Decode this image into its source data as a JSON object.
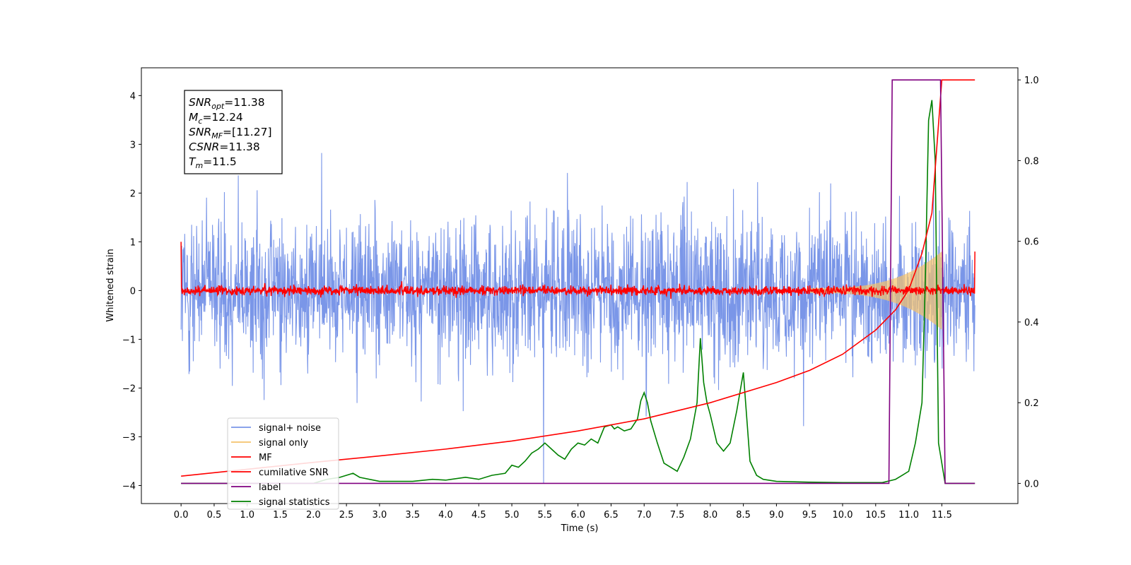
{
  "chart_data": {
    "type": "line",
    "xlabel": "Time (s)",
    "ylabel": "Whitened strain",
    "xlim": [
      -0.6,
      12.65
    ],
    "ylim": [
      -4.37,
      4.57
    ],
    "y2lim": [
      -0.05,
      1.03
    ],
    "grid": false,
    "legend_position": "lower-left",
    "x_ticks": [
      "0.0",
      "0.5",
      "1.0",
      "1.5",
      "2.0",
      "2.5",
      "3.0",
      "3.5",
      "4.0",
      "4.5",
      "5.0",
      "5.5",
      "6.0",
      "6.5",
      "7.0",
      "7.5",
      "8.0",
      "8.5",
      "9.0",
      "9.5",
      "10.0",
      "10.5",
      "11.0",
      "11.5"
    ],
    "y_ticks_left": [
      "−4",
      "−3",
      "−2",
      "−1",
      "0",
      "1",
      "2",
      "3",
      "4"
    ],
    "y_ticks_right": [
      "0.0",
      "0.2",
      "0.4",
      "0.6",
      "0.8",
      "1.0"
    ],
    "annotation": [
      {
        "base": "SNR",
        "sub": "opt",
        "value": "=11.38"
      },
      {
        "base": "M",
        "sub": "c",
        "value": "=12.24"
      },
      {
        "base": "SNR",
        "sub": "MF",
        "value": "=[11.27]"
      },
      {
        "base": "CSNR",
        "sub": "",
        "value": "=11.38"
      },
      {
        "base": "T",
        "sub": "m",
        "value": "=11.5"
      }
    ],
    "series": [
      {
        "name": "signal+ noise",
        "color": "#7a96e8",
        "axis": "left",
        "envelope": "dense noise, amplitude ~±2.5, peaks to ±4"
      },
      {
        "name": "signal only",
        "color": "#f5c26b",
        "axis": "left",
        "t_start": 9.5,
        "t_end": 11.5,
        "peak_amplitude": 0.75
      },
      {
        "name": "MF",
        "color": "#ff0000",
        "axis": "left",
        "baseline": 0.0,
        "noise_amplitude": 0.12,
        "end_points": [
          [
            0.0,
            1.0
          ],
          [
            12.0,
            0.8
          ]
        ]
      },
      {
        "name": "cumilative SNR",
        "color": "#ff0000",
        "axis": "right",
        "x": [
          0.0,
          1.0,
          2.0,
          3.0,
          4.0,
          5.0,
          6.0,
          7.0,
          8.0,
          9.0,
          9.5,
          10.0,
          10.5,
          10.8,
          11.0,
          11.2,
          11.35,
          11.5,
          12.0
        ],
        "y": [
          0.018,
          0.035,
          0.052,
          0.068,
          0.085,
          0.105,
          0.13,
          0.16,
          0.2,
          0.25,
          0.28,
          0.32,
          0.38,
          0.43,
          0.48,
          0.57,
          0.67,
          1.0,
          1.0
        ]
      },
      {
        "name": "label",
        "color": "#800080",
        "axis": "right",
        "x": [
          0.0,
          10.7,
          10.75,
          11.48,
          11.55,
          11.6,
          12.0
        ],
        "y": [
          0.0,
          0.0,
          1.0,
          1.0,
          0.0,
          0.0,
          0.0
        ]
      },
      {
        "name": "signal statistics",
        "color": "#008000",
        "axis": "right",
        "x": [
          0.0,
          0.5,
          1.0,
          1.5,
          2.0,
          2.2,
          2.4,
          2.5,
          2.6,
          2.7,
          3.0,
          3.5,
          3.8,
          4.0,
          4.3,
          4.5,
          4.7,
          4.9,
          5.0,
          5.1,
          5.2,
          5.3,
          5.4,
          5.5,
          5.6,
          5.7,
          5.8,
          5.9,
          6.0,
          6.1,
          6.2,
          6.3,
          6.4,
          6.5,
          6.55,
          6.6,
          6.7,
          6.8,
          6.9,
          6.95,
          7.0,
          7.05,
          7.1,
          7.2,
          7.3,
          7.4,
          7.5,
          7.6,
          7.7,
          7.8,
          7.85,
          7.9,
          7.95,
          8.0,
          8.1,
          8.2,
          8.3,
          8.4,
          8.5,
          8.6,
          8.7,
          8.8,
          9.0,
          9.5,
          10.0,
          10.6,
          10.8,
          10.9,
          11.0,
          11.1,
          11.2,
          11.25,
          11.3,
          11.35,
          11.4,
          11.45,
          11.5,
          11.55,
          11.6,
          12.0
        ],
        "y": [
          0.0,
          0.0,
          0.0,
          0.0,
          0.0,
          0.01,
          0.015,
          0.02,
          0.025,
          0.015,
          0.005,
          0.005,
          0.01,
          0.008,
          0.015,
          0.01,
          0.02,
          0.025,
          0.045,
          0.04,
          0.055,
          0.075,
          0.085,
          0.1,
          0.085,
          0.07,
          0.06,
          0.085,
          0.1,
          0.095,
          0.11,
          0.1,
          0.14,
          0.145,
          0.135,
          0.14,
          0.13,
          0.135,
          0.16,
          0.205,
          0.225,
          0.2,
          0.155,
          0.1,
          0.05,
          0.04,
          0.03,
          0.065,
          0.11,
          0.2,
          0.36,
          0.25,
          0.2,
          0.17,
          0.1,
          0.08,
          0.1,
          0.18,
          0.275,
          0.055,
          0.02,
          0.01,
          0.005,
          0.003,
          0.002,
          0.002,
          0.01,
          0.02,
          0.03,
          0.1,
          0.2,
          0.5,
          0.9,
          0.95,
          0.8,
          0.1,
          0.05,
          0.0,
          0.0,
          0.0
        ]
      }
    ]
  }
}
